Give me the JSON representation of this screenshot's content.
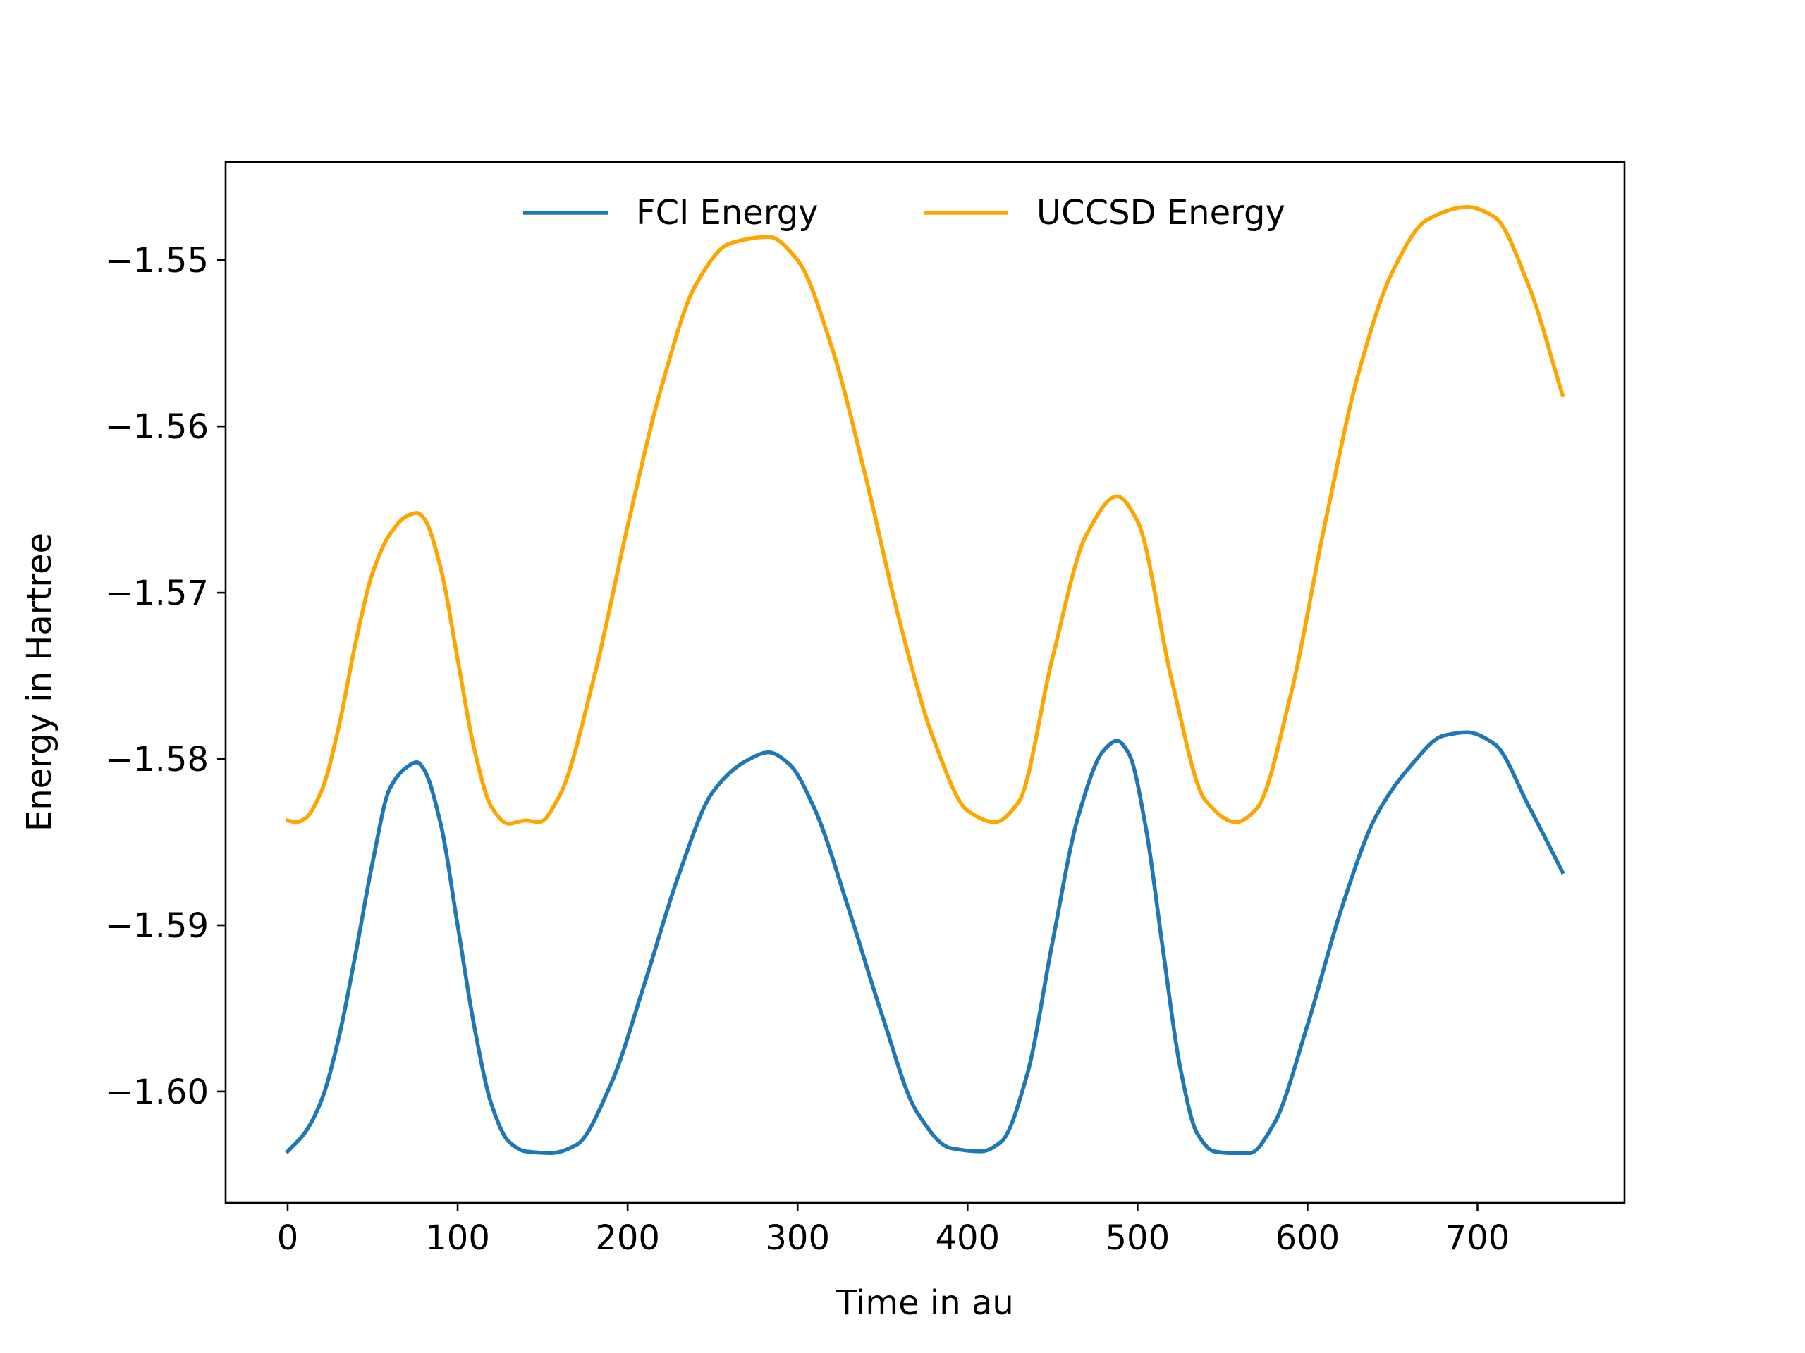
{
  "chart_data": {
    "type": "line",
    "title": "",
    "xlabel": "Time in au",
    "ylabel": "Energy in Hartree",
    "xlim": [
      -36.5,
      786.5
    ],
    "ylim": [
      -1.6067,
      -1.5441
    ],
    "xticks": [
      0,
      100,
      200,
      300,
      400,
      500,
      600,
      700
    ],
    "xtick_labels": [
      "0",
      "100",
      "200",
      "300",
      "400",
      "500",
      "600",
      "700"
    ],
    "yticks": [
      -1.6,
      -1.59,
      -1.58,
      -1.57,
      -1.56,
      -1.55
    ],
    "ytick_labels": [
      "−1.60",
      "−1.59",
      "−1.58",
      "−1.57",
      "−1.56",
      "−1.55"
    ],
    "grid": false,
    "legend": {
      "placement": "upper-center",
      "columns": 2
    },
    "series": [
      {
        "name": "FCI Energy",
        "color": "#1f77b4",
        "x": [
          0,
          10,
          20,
          30,
          40,
          50,
          60,
          70,
          76,
          80,
          90,
          100,
          110,
          120,
          130,
          140,
          155,
          170,
          190,
          210,
          230,
          250,
          270,
          283,
          295,
          310,
          330,
          350,
          370,
          390,
          408,
          420,
          435,
          450,
          465,
          480,
          488,
          495,
          505,
          515,
          525,
          535,
          545,
          555,
          566,
          580,
          600,
          620,
          640,
          660,
          680,
          694,
          710,
          730,
          750
        ],
        "y": [
          -1.6036,
          -1.6025,
          -1.6005,
          -1.5968,
          -1.5917,
          -1.5862,
          -1.5818,
          -1.5805,
          -1.5802,
          -1.5806,
          -1.5839,
          -1.59,
          -1.5962,
          -1.6008,
          -1.603,
          -1.6036,
          -1.6037,
          -1.6032,
          -1.5996,
          -1.5935,
          -1.587,
          -1.582,
          -1.5801,
          -1.5796,
          -1.5803,
          -1.583,
          -1.589,
          -1.5955,
          -1.6012,
          -1.6034,
          -1.6036,
          -1.603,
          -1.599,
          -1.591,
          -1.5835,
          -1.5795,
          -1.5789,
          -1.5797,
          -1.5842,
          -1.5915,
          -1.5985,
          -1.6025,
          -1.6036,
          -1.6037,
          -1.6037,
          -1.602,
          -1.596,
          -1.589,
          -1.5835,
          -1.5805,
          -1.5786,
          -1.5784,
          -1.5791,
          -1.5828,
          -1.5868
        ]
      },
      {
        "name": "UCCSD Energy",
        "color": "#ffa500",
        "x": [
          0,
          5,
          10,
          20,
          30,
          40,
          50,
          60,
          70,
          76,
          80,
          90,
          100,
          110,
          120,
          130,
          140,
          148,
          160,
          180,
          200,
          220,
          240,
          260,
          283,
          300,
          320,
          340,
          360,
          380,
          400,
          416,
          430,
          450,
          470,
          488,
          500,
          520,
          540,
          558,
          570,
          590,
          610,
          630,
          650,
          670,
          694,
          710,
          730,
          750
        ],
        "y": [
          -1.5837,
          -1.5838,
          -1.5836,
          -1.5819,
          -1.5781,
          -1.573,
          -1.5688,
          -1.5665,
          -1.5654,
          -1.5652,
          -1.5655,
          -1.5685,
          -1.574,
          -1.5795,
          -1.5829,
          -1.5839,
          -1.5837,
          -1.5838,
          -1.5822,
          -1.5752,
          -1.566,
          -1.5576,
          -1.5515,
          -1.549,
          -1.5486,
          -1.55,
          -1.5552,
          -1.563,
          -1.5717,
          -1.5788,
          -1.5831,
          -1.5838,
          -1.5826,
          -1.5739,
          -1.5665,
          -1.5642,
          -1.5657,
          -1.5752,
          -1.5825,
          -1.5838,
          -1.583,
          -1.5762,
          -1.566,
          -1.5568,
          -1.5507,
          -1.5476,
          -1.5468,
          -1.5474,
          -1.5515,
          -1.5581
        ]
      }
    ]
  }
}
